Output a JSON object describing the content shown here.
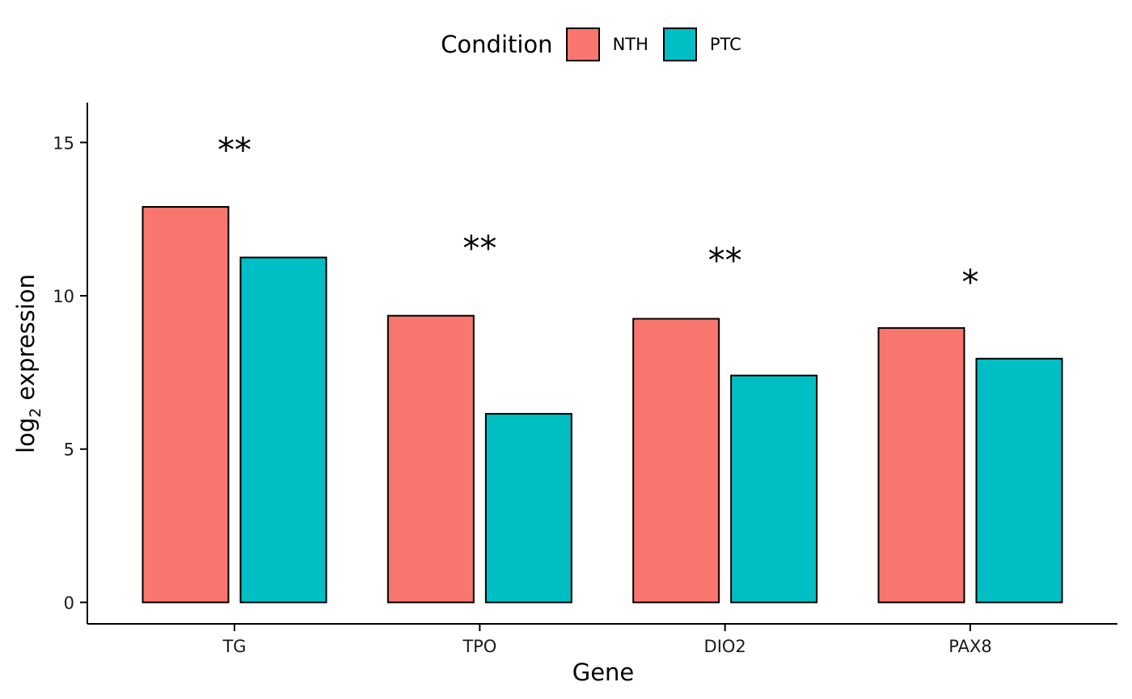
{
  "chart_data": {
    "type": "bar",
    "categories": [
      "TG",
      "TPO",
      "DIO2",
      "PAX8"
    ],
    "series": [
      {
        "name": "NTH",
        "color": "#F8766D",
        "values": [
          12.9,
          9.35,
          9.25,
          8.95
        ]
      },
      {
        "name": "PTC",
        "color": "#00BFC4",
        "values": [
          11.25,
          6.15,
          7.4,
          7.95
        ]
      }
    ],
    "annotations": [
      {
        "category": "TG",
        "text": "**",
        "y": 14.9
      },
      {
        "category": "TPO",
        "text": "**",
        "y": 11.7
      },
      {
        "category": "DIO2",
        "text": "**",
        "y": 11.3
      },
      {
        "category": "PAX8",
        "text": "*",
        "y": 10.6
      }
    ],
    "xlabel": "Gene",
    "ylabel_main": "log",
    "ylabel_sub": "2",
    "ylabel_rest": " expression",
    "ylim": [
      -0.7,
      16.3
    ],
    "yticks": [
      0,
      5,
      10,
      15
    ],
    "legend_title": "Condition",
    "legend_position": "top",
    "grid": false
  }
}
